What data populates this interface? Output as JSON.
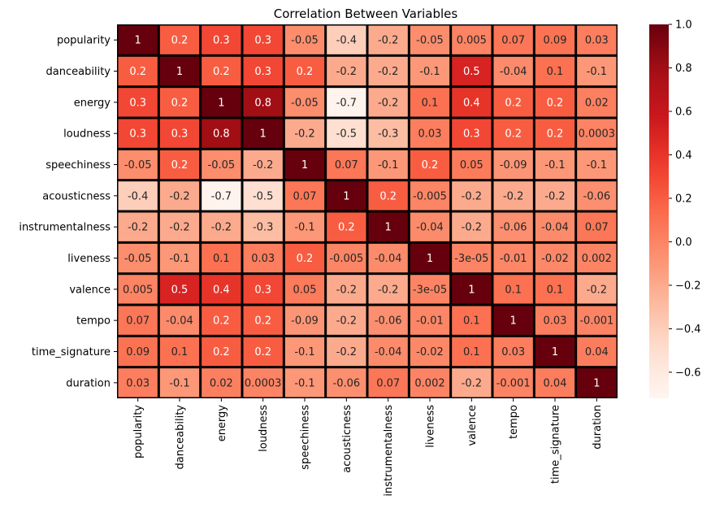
{
  "chart_data": {
    "type": "heatmap",
    "title": "Correlation Between Variables",
    "xlabel": "",
    "ylabel": "",
    "rows": [
      "popularity",
      "danceability",
      "energy",
      "loudness",
      "speechiness",
      "acousticness",
      "instrumentalness",
      "liveness",
      "valence",
      "tempo",
      "time_signature",
      "duration"
    ],
    "columns": [
      "popularity",
      "danceability",
      "energy",
      "loudness",
      "speechiness",
      "acousticness",
      "instrumentalness",
      "liveness",
      "valence",
      "tempo",
      "time_signature",
      "duration"
    ],
    "values": [
      [
        1,
        0.2,
        0.3,
        0.3,
        -0.05,
        -0.4,
        -0.2,
        -0.05,
        0.005,
        0.07,
        0.09,
        0.03
      ],
      [
        0.2,
        1,
        0.2,
        0.3,
        0.2,
        -0.2,
        -0.2,
        -0.1,
        0.5,
        -0.04,
        0.1,
        -0.1
      ],
      [
        0.3,
        0.2,
        1,
        0.8,
        -0.05,
        -0.7,
        -0.2,
        0.1,
        0.4,
        0.2,
        0.2,
        0.02
      ],
      [
        0.3,
        0.3,
        0.8,
        1,
        -0.2,
        -0.5,
        -0.3,
        0.03,
        0.3,
        0.2,
        0.2,
        0.0003
      ],
      [
        -0.05,
        0.2,
        -0.05,
        -0.2,
        1,
        0.07,
        -0.1,
        0.2,
        0.05,
        -0.09,
        -0.1,
        -0.1
      ],
      [
        -0.4,
        -0.2,
        -0.7,
        -0.5,
        0.07,
        1,
        0.2,
        -0.005,
        -0.2,
        -0.2,
        -0.2,
        -0.06
      ],
      [
        -0.2,
        -0.2,
        -0.2,
        -0.3,
        -0.1,
        0.2,
        1,
        -0.04,
        -0.2,
        -0.06,
        -0.04,
        0.07
      ],
      [
        -0.05,
        -0.1,
        0.1,
        0.03,
        0.2,
        -0.005,
        -0.04,
        1,
        -3e-05,
        -0.01,
        -0.02,
        0.002
      ],
      [
        0.005,
        0.5,
        0.4,
        0.3,
        0.05,
        -0.2,
        -0.2,
        -3e-05,
        1,
        0.1,
        0.1,
        -0.2
      ],
      [
        0.07,
        -0.04,
        0.2,
        0.2,
        -0.09,
        -0.2,
        -0.06,
        -0.01,
        0.1,
        1,
        0.03,
        -0.001
      ],
      [
        0.09,
        0.1,
        0.2,
        0.2,
        -0.1,
        -0.2,
        -0.04,
        -0.02,
        0.1,
        0.03,
        1,
        0.04
      ],
      [
        0.03,
        -0.1,
        0.02,
        0.0003,
        -0.1,
        -0.06,
        0.07,
        0.002,
        -0.2,
        -0.001,
        0.04,
        1
      ]
    ],
    "annotations": [
      [
        "1",
        "0.2",
        "0.3",
        "0.3",
        "-0.05",
        "-0.4",
        "-0.2",
        "-0.05",
        "0.005",
        "0.07",
        "0.09",
        "0.03"
      ],
      [
        "0.2",
        "1",
        "0.2",
        "0.3",
        "0.2",
        "-0.2",
        "-0.2",
        "-0.1",
        "0.5",
        "-0.04",
        "0.1",
        "-0.1"
      ],
      [
        "0.3",
        "0.2",
        "1",
        "0.8",
        "-0.05",
        "-0.7",
        "-0.2",
        "0.1",
        "0.4",
        "0.2",
        "0.2",
        "0.02"
      ],
      [
        "0.3",
        "0.3",
        "0.8",
        "1",
        "-0.2",
        "-0.5",
        "-0.3",
        "0.03",
        "0.3",
        "0.2",
        "0.2",
        "0.0003"
      ],
      [
        "-0.05",
        "0.2",
        "-0.05",
        "-0.2",
        "1",
        "0.07",
        "-0.1",
        "0.2",
        "0.05",
        "-0.09",
        "-0.1",
        "-0.1"
      ],
      [
        "-0.4",
        "-0.2",
        "-0.7",
        "-0.5",
        "0.07",
        "1",
        "0.2",
        "-0.005",
        "-0.2",
        "-0.2",
        "-0.2",
        "-0.06"
      ],
      [
        "-0.2",
        "-0.2",
        "-0.2",
        "-0.3",
        "-0.1",
        "0.2",
        "1",
        "-0.04",
        "-0.2",
        "-0.06",
        "-0.04",
        "0.07"
      ],
      [
        "-0.05",
        "-0.1",
        "0.1",
        "0.03",
        "0.2",
        "-0.005",
        "-0.04",
        "1",
        "-3e-05",
        "-0.01",
        "-0.02",
        "0.002"
      ],
      [
        "0.005",
        "0.5",
        "0.4",
        "0.3",
        "0.05",
        "-0.2",
        "-0.2",
        "-3e-05",
        "1",
        "0.1",
        "0.1",
        "-0.2"
      ],
      [
        "0.07",
        "-0.04",
        "0.2",
        "0.2",
        "-0.09",
        "-0.2",
        "-0.06",
        "-0.01",
        "0.1",
        "1",
        "0.03",
        "-0.001"
      ],
      [
        "0.09",
        "0.1",
        "0.2",
        "0.2",
        "-0.1",
        "-0.2",
        "-0.04",
        "-0.02",
        "0.1",
        "0.03",
        "1",
        "0.04"
      ],
      [
        "0.03",
        "-0.1",
        "0.02",
        "0.0003",
        "-0.1",
        "-0.06",
        "0.07",
        "0.002",
        "-0.2",
        "-0.001",
        "0.04",
        "1"
      ]
    ],
    "colormap": "Reds",
    "vmin": -0.72,
    "vmax": 1,
    "colorbar_ticks": [
      1.0,
      0.8,
      0.6,
      0.4,
      0.2,
      0.0,
      -0.2,
      -0.4,
      -0.6
    ],
    "colorbar_tick_labels": [
      "1.0",
      "0.8",
      "0.6",
      "0.4",
      "0.2",
      "0.0",
      "−0.2",
      "−0.4",
      "−0.6"
    ],
    "grid_line_color": "#000000",
    "legend": "colorbar-right"
  }
}
